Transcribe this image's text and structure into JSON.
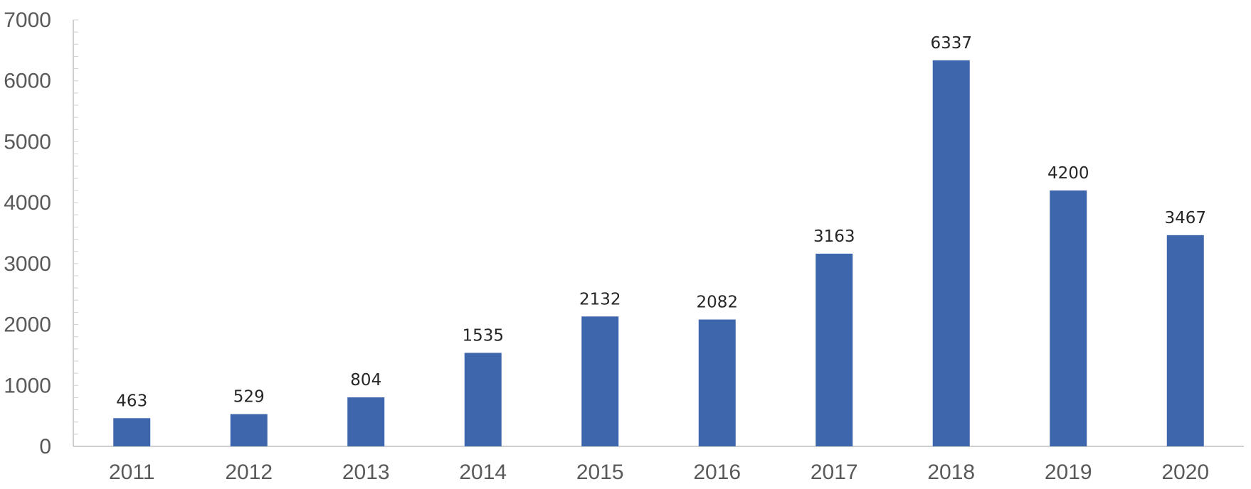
{
  "chart_data": {
    "type": "bar",
    "title": "",
    "xlabel": "",
    "ylabel": "",
    "categories": [
      "2011",
      "2012",
      "2013",
      "2014",
      "2015",
      "2016",
      "2017",
      "2018",
      "2019",
      "2020"
    ],
    "values": [
      463,
      529,
      804,
      1535,
      2132,
      2082,
      3163,
      6337,
      4200,
      3467
    ],
    "ylim": [
      0,
      7000
    ],
    "yticks": [
      0,
      1000,
      2000,
      3000,
      4000,
      5000,
      6000,
      7000
    ],
    "bar_color": "#3d66ac",
    "grid": false,
    "legend": "none",
    "data_labels": true
  }
}
